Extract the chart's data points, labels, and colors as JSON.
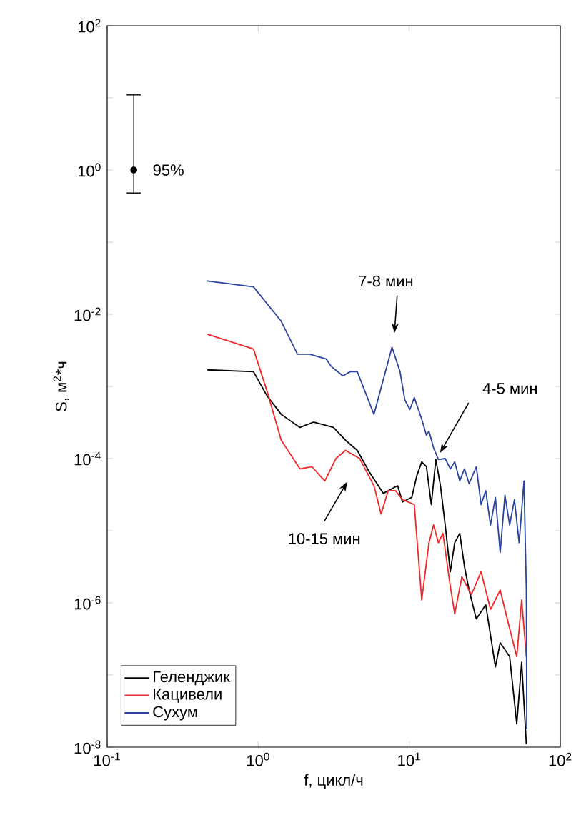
{
  "chart_data": {
    "type": "line",
    "xlabel": "f, цикл/ч",
    "ylabel": "S, м$^{2}$*ч",
    "log": "xy",
    "legend": "bottom left",
    "xlim": [
      0.1,
      100
    ],
    "ylim": [
      1e-08,
      100
    ],
    "xticks": [
      {
        "value": 0.1,
        "label": "10$^{-1}$"
      },
      {
        "value": 1,
        "label": "10$^{0}$"
      },
      {
        "value": 10,
        "label": "10$^{1}$"
      },
      {
        "value": 100,
        "label": "10$^{2}$"
      }
    ],
    "yticks": [
      {
        "value": 1e-08,
        "label": "10$^{-8}$"
      },
      {
        "value": 1e-07,
        "label": null
      },
      {
        "value": 1e-06,
        "label": "10$^{-6}$"
      },
      {
        "value": 1e-05,
        "label": null
      },
      {
        "value": 0.0001,
        "label": "10$^{-4}$"
      },
      {
        "value": 0.001,
        "label": null
      },
      {
        "value": 0.01,
        "label": "10$^{-2}$"
      },
      {
        "value": 0.1,
        "label": null
      },
      {
        "value": 1,
        "label": "10$^{0}$"
      },
      {
        "value": 10,
        "label": null
      },
      {
        "value": 100,
        "label": "10$^{2}$"
      }
    ],
    "series": [
      {
        "name": "Геленджик",
        "color": "#000000",
        "x": [
          0.46,
          0.93,
          1.14,
          1.42,
          1.89,
          2.32,
          3.15,
          3.78,
          4.53,
          5.42,
          6.74,
          8.38,
          9.03,
          10.4,
          11.2,
          12.1,
          13.0,
          14.0,
          15.0,
          16.1,
          17.3,
          18.7,
          20.0,
          21.6,
          23.2,
          24.9,
          27.8,
          32.1,
          37.2,
          40.0,
          46.2,
          51.5,
          55.5,
          59.6
        ],
        "values": [
          0.0017,
          0.0016,
          0.00075,
          0.00041,
          0.00027,
          0.00032,
          0.00027,
          0.00018,
          0.00013,
          6.6e-05,
          3.3e-05,
          4.2e-05,
          2.5e-05,
          2.9e-05,
          5.7e-05,
          9e-05,
          7.7e-05,
          2.3e-05,
          9.7e-05,
          4.2e-05,
          1.2e-05,
          2.7e-06,
          6.8e-06,
          9.2e-06,
          3.2e-06,
          1.5e-06,
          6e-07,
          9.4e-07,
          1.3e-07,
          2.8e-07,
          1.8e-07,
          2.1e-08,
          1.5e-07,
          1.1e-08
        ]
      },
      {
        "name": "Кацивели",
        "color": "#f02828",
        "x": [
          0.46,
          0.93,
          1.14,
          1.42,
          1.89,
          2.27,
          2.76,
          3.27,
          3.78,
          4.7,
          5.84,
          6.51,
          7.26,
          8.1,
          9.03,
          10.8,
          12.1,
          13.5,
          14.5,
          15.6,
          16.7,
          18.7,
          20.0,
          22.3,
          25.8,
          29.9,
          34.5,
          40.0,
          46.2,
          51.5,
          55.5,
          59.6
        ],
        "values": [
          0.0053,
          0.0033,
          0.00088,
          0.00018,
          7.2e-05,
          7.7e-05,
          4.9e-05,
          0.0001,
          0.00013,
          0.0001,
          4.2e-05,
          1.7e-05,
          3.6e-05,
          3.6e-05,
          2.7e-05,
          2.3e-05,
          1.1e-06,
          6.8e-06,
          1.2e-05,
          6.8e-06,
          9.2e-06,
          1.7e-06,
          7e-07,
          2.3e-06,
          1.3e-06,
          2.7e-06,
          8.1e-07,
          1.5e-06,
          4.4e-07,
          1.8e-07,
          1.1e-06,
          1.8e-07
        ]
      },
      {
        "name": "Сухум",
        "color": "#2a44a0",
        "x": [
          0.46,
          0.93,
          1.42,
          1.82,
          2.19,
          2.82,
          3.04,
          3.64,
          4.06,
          4.53,
          5.84,
          7.69,
          8.69,
          9.35,
          10.1,
          10.8,
          12.1,
          13.0,
          13.5,
          14.5,
          15.6,
          17.3,
          18.7,
          20.0,
          21.6,
          23.2,
          24.9,
          27.8,
          29.9,
          32.1,
          34.5,
          37.2,
          40.0,
          43.0,
          46.2,
          49.7,
          53.4,
          57.5,
          59.6,
          60.0
        ],
        "values": [
          0.029,
          0.024,
          0.008,
          0.0028,
          0.0028,
          0.0024,
          0.0019,
          0.0014,
          0.0016,
          0.0016,
          0.00041,
          0.0035,
          0.0016,
          0.00065,
          0.00048,
          0.0007,
          0.00035,
          0.00021,
          0.00024,
          0.00014,
          9.7e-05,
          0.0001,
          7.2e-05,
          9e-05,
          4.9e-05,
          7.2e-05,
          4.5e-05,
          7.7e-05,
          2.3e-05,
          3.6e-05,
          1.2e-05,
          2.9e-05,
          5e-06,
          3.1e-05,
          1.2e-05,
          2.7e-05,
          6.8e-06,
          4.9e-05,
          1.5e-06,
          1.8e-08
        ]
      },
      {
        "type": "scatter",
        "color": "#000000",
        "x": [
          0.15
        ],
        "values": [
          1
        ],
        "errors": [
          [
            0.48,
            11
          ]
        ]
      }
    ],
    "annotations": [
      {
        "text": "95%",
        "x": 0.15,
        "y": 1
      },
      "7-8 мин",
      {
        "text": "4-5 мин",
        "x": 16,
        "y": 0.00012
      },
      "10-15 мин"
    ]
  }
}
